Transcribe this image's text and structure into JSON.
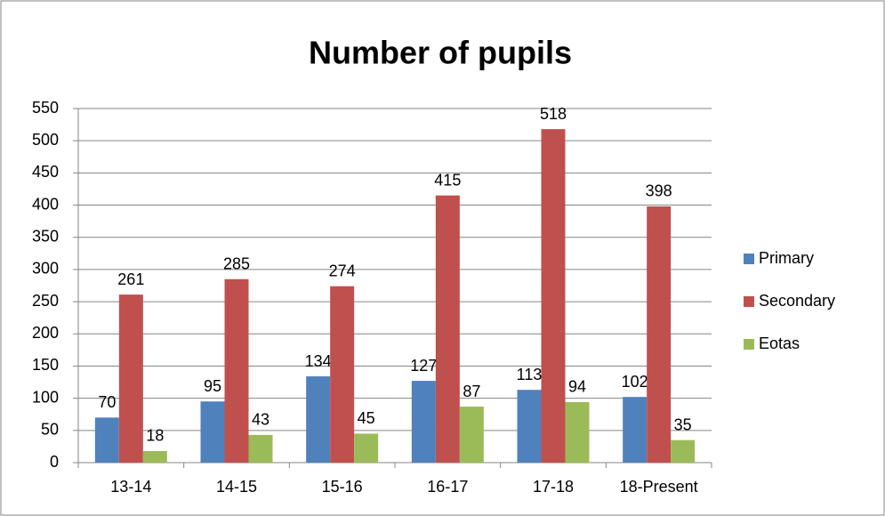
{
  "chart_data": {
    "type": "bar",
    "title": "Number of pupils",
    "categories": [
      "13-14",
      "14-15",
      "15-16",
      "16-17",
      "17-18",
      "18-Present"
    ],
    "series": [
      {
        "name": "Primary",
        "color": "#4f81bd",
        "values": [
          70,
          95,
          134,
          127,
          113,
          102
        ]
      },
      {
        "name": "Secondary",
        "color": "#c0504d",
        "values": [
          261,
          285,
          274,
          415,
          518,
          398
        ]
      },
      {
        "name": "Eotas",
        "color": "#9bbb59",
        "values": [
          18,
          43,
          45,
          87,
          94,
          35
        ]
      }
    ],
    "ylim": [
      0,
      550
    ],
    "yticks": [
      0,
      50,
      100,
      150,
      200,
      250,
      300,
      350,
      400,
      450,
      500,
      550
    ],
    "grid": true,
    "legend": "right"
  }
}
